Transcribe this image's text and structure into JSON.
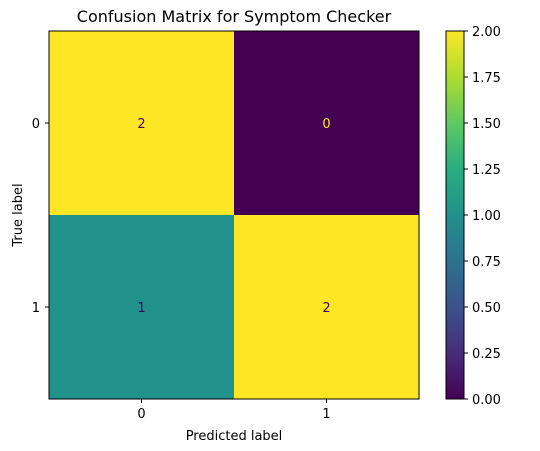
{
  "chart_data": {
    "type": "heatmap",
    "title": "Confusion Matrix for Symptom Checker",
    "xlabel": "Predicted label",
    "ylabel": "True label",
    "x_categories": [
      "0",
      "1"
    ],
    "y_categories": [
      "0",
      "1"
    ],
    "values": [
      [
        2,
        0
      ],
      [
        1,
        2
      ]
    ],
    "colorscale": "viridis",
    "vmin": 0.0,
    "vmax": 2.0,
    "colorbar_ticks": [
      "0.00",
      "0.25",
      "0.50",
      "0.75",
      "1.00",
      "1.25",
      "1.50",
      "1.75",
      "2.00"
    ],
    "colors": {
      "low": "#440154",
      "mid": "#21918c",
      "high": "#fde725",
      "text_on_dark": "#fde725",
      "text_on_light": "#440154"
    }
  }
}
